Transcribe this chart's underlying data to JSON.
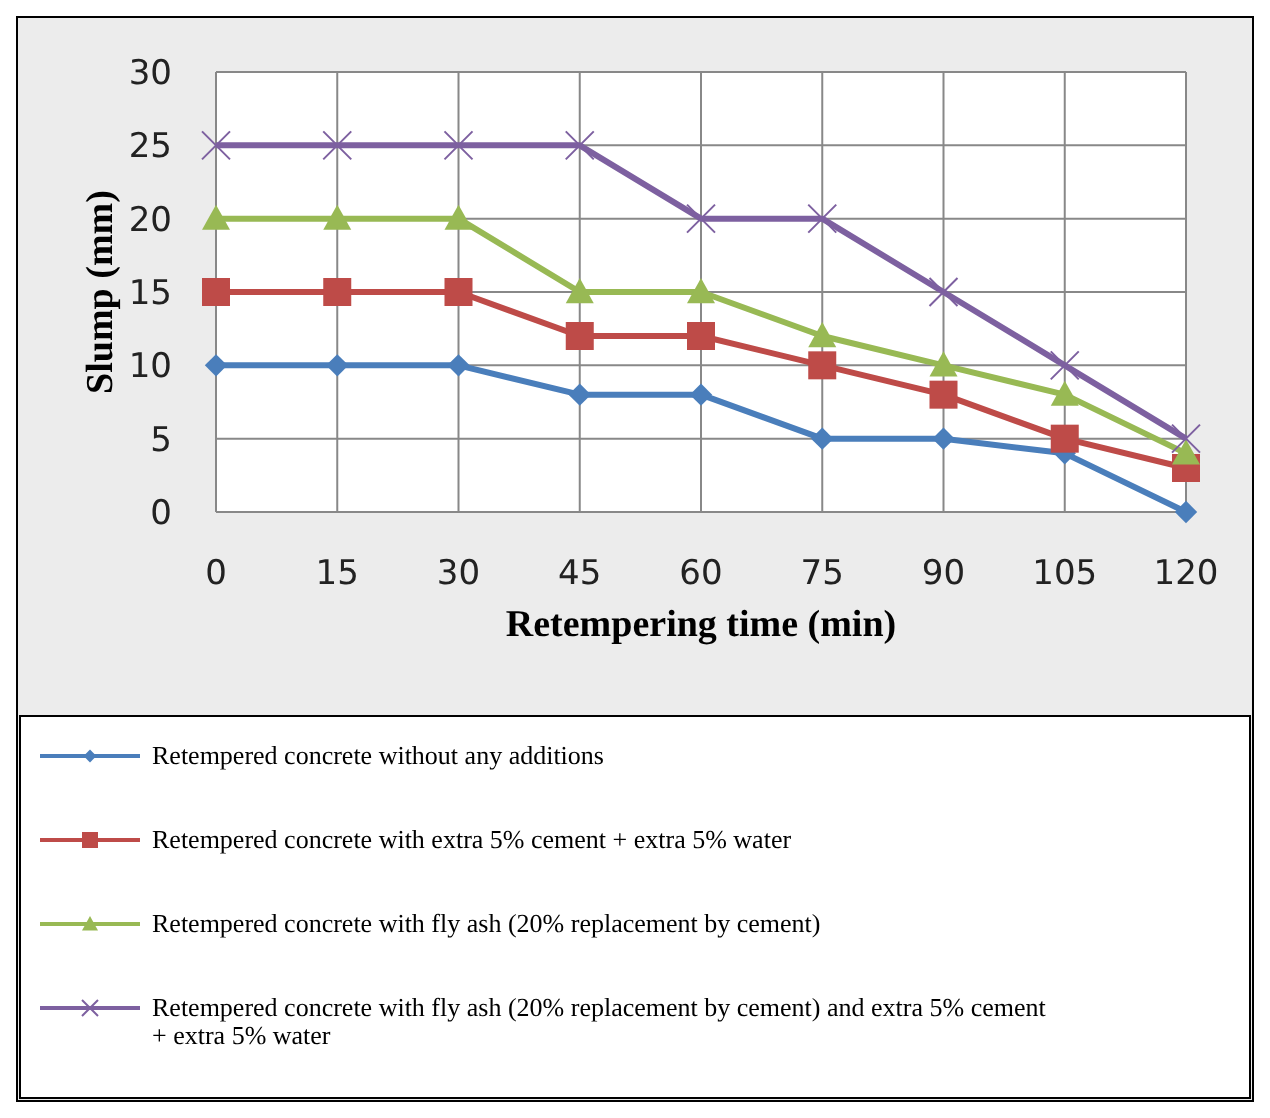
{
  "chart_data": {
    "type": "line",
    "xlabel": "Retempering time (min)",
    "ylabel": "Slump (mm)",
    "categories": [
      "0",
      "15",
      "30",
      "45",
      "60",
      "75",
      "90",
      "105",
      "120"
    ],
    "ylim": [
      0,
      30
    ],
    "yticks": [
      0,
      5,
      10,
      15,
      20,
      25,
      30
    ],
    "grid": true,
    "legend": "bottom",
    "series": [
      {
        "name": "Retempered concrete without any additions",
        "color": "#4a7ebb",
        "marker": "diamond",
        "values": [
          10,
          10,
          10,
          8,
          8,
          5,
          5,
          4,
          0
        ]
      },
      {
        "name": "Retempered concrete with extra 5% cement + extra 5% water",
        "color": "#be4b48",
        "marker": "square",
        "values": [
          15,
          15,
          15,
          12,
          12,
          10,
          8,
          5,
          3
        ]
      },
      {
        "name": "Retempered concrete with fly ash (20% replacement by cement)",
        "color": "#98b954",
        "marker": "triangle",
        "values": [
          20,
          20,
          20,
          15,
          15,
          12,
          10,
          8,
          4
        ]
      },
      {
        "name": "Retempered concrete with fly ash (20% replacement by cement) and  extra 5% cement + extra 5% water",
        "color": "#7d60a0",
        "marker": "cross",
        "values": [
          25,
          25,
          25,
          25,
          20,
          20,
          15,
          10,
          5
        ]
      }
    ]
  }
}
